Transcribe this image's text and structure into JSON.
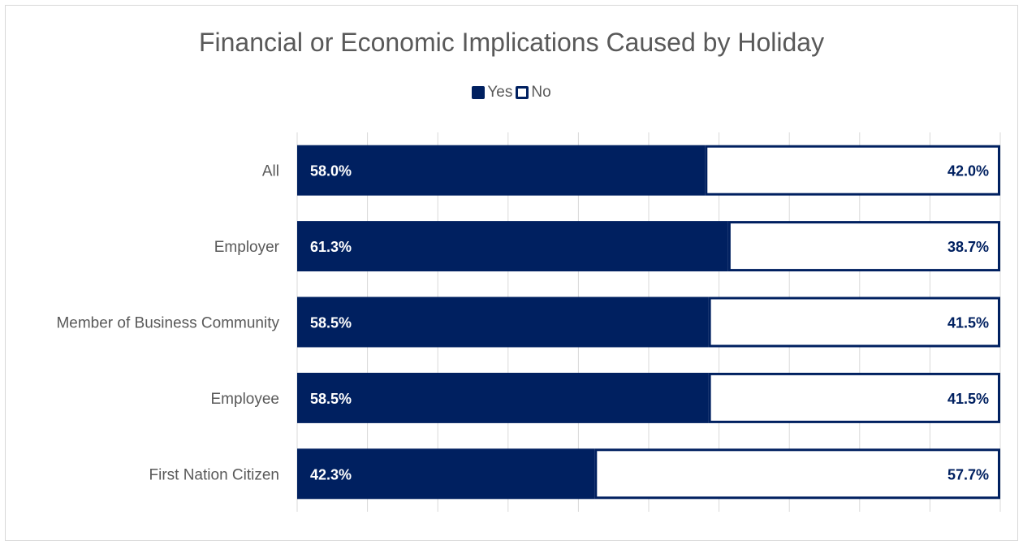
{
  "chart_data": {
    "type": "bar",
    "orientation": "horizontal",
    "stacked": true,
    "title": "Financial or Economic Implications Caused by Holiday",
    "legend_position": "top",
    "categories": [
      "All",
      "Employer",
      "Member of Business Community",
      "Employee",
      "First Nation Citizen"
    ],
    "series": [
      {
        "name": "Yes",
        "values": [
          58.0,
          61.3,
          58.5,
          58.5,
          42.3
        ],
        "labels": [
          "58.0%",
          "61.3%",
          "58.5%",
          "58.5%",
          "42.3%"
        ],
        "color": "#002060",
        "fill": "#002060",
        "label_color": "#ffffff"
      },
      {
        "name": "No",
        "values": [
          42.0,
          38.7,
          41.5,
          41.5,
          57.7
        ],
        "labels": [
          "42.0%",
          "38.7%",
          "41.5%",
          "41.5%",
          "57.7%"
        ],
        "color": "#002060",
        "fill": "#ffffff",
        "label_color": "#002060"
      }
    ],
    "xlim": [
      0,
      100
    ],
    "grid": true
  }
}
